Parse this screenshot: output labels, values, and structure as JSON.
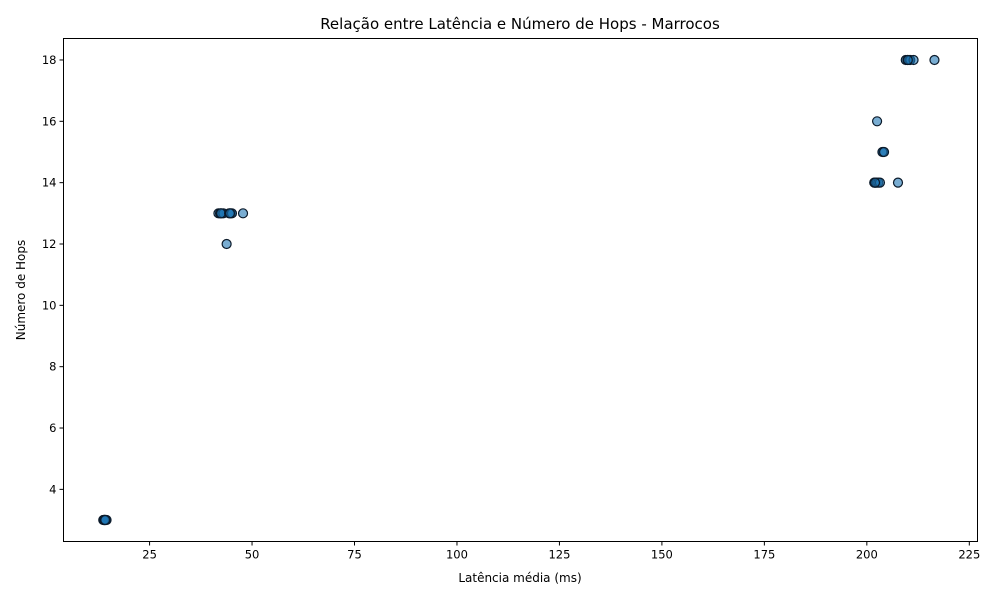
{
  "chart_data": {
    "type": "scatter",
    "title": "Relação entre Latência e Número de Hops - Marrocos",
    "xlabel": "Latência média (ms)",
    "ylabel": "Número de Hops",
    "xlim": [
      4,
      227
    ],
    "ylim": [
      2.3,
      18.7
    ],
    "xticks": [
      25,
      50,
      75,
      100,
      125,
      150,
      175,
      200,
      225
    ],
    "yticks": [
      4,
      6,
      8,
      10,
      12,
      14,
      16,
      18
    ],
    "grid": false,
    "marker_color": "#1f77b4",
    "marker_alpha": 0.6,
    "edge_color": "#0b1a2a",
    "series": [
      {
        "points": [
          [
            13.8,
            3
          ],
          [
            13.9,
            3
          ],
          [
            14.0,
            3
          ],
          [
            14.1,
            3
          ],
          [
            14.2,
            3
          ],
          [
            14.3,
            3
          ],
          [
            14.5,
            3
          ],
          [
            13.7,
            3
          ],
          [
            13.9,
            3
          ],
          [
            14.1,
            3
          ],
          [
            14.0,
            3
          ],
          [
            14.2,
            3
          ],
          [
            41.8,
            13
          ],
          [
            42.2,
            13
          ],
          [
            42.6,
            13
          ],
          [
            43.0,
            13
          ],
          [
            42.4,
            13
          ],
          [
            44.4,
            13
          ],
          [
            44.8,
            13
          ],
          [
            45.1,
            13
          ],
          [
            44.6,
            13
          ],
          [
            47.8,
            13
          ],
          [
            43.8,
            12
          ],
          [
            202.5,
            16
          ],
          [
            204.0,
            15
          ],
          [
            203.8,
            15
          ],
          [
            204.2,
            15
          ],
          [
            201.8,
            14
          ],
          [
            202.1,
            14
          ],
          [
            202.4,
            14
          ],
          [
            202.8,
            14
          ],
          [
            203.2,
            14
          ],
          [
            202.0,
            14
          ],
          [
            207.6,
            14
          ],
          [
            209.5,
            18
          ],
          [
            209.9,
            18
          ],
          [
            210.3,
            18
          ],
          [
            210.6,
            18
          ],
          [
            211.4,
            18
          ],
          [
            216.5,
            18
          ],
          [
            210.0,
            18
          ]
        ]
      }
    ]
  }
}
